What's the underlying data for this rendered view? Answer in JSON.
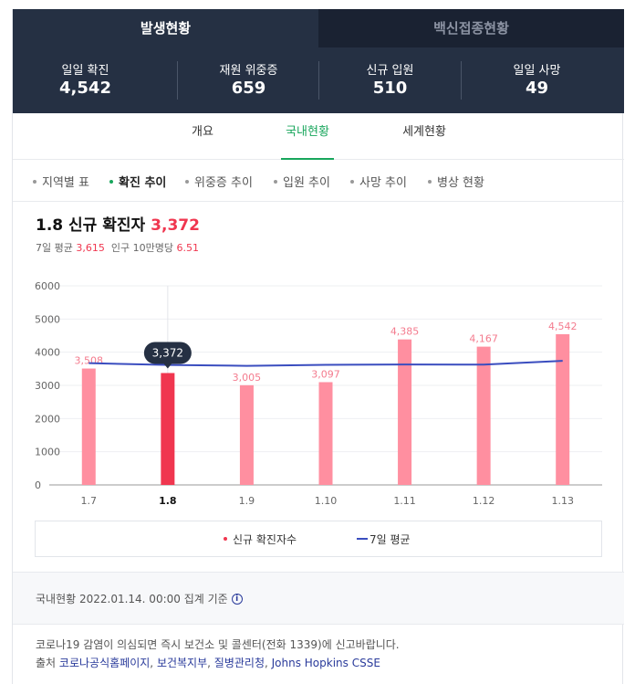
{
  "main_tabs": [
    {
      "label": "발생현황",
      "active": true
    },
    {
      "label": "백신접종현황",
      "active": false
    }
  ],
  "stats": [
    {
      "label": "일일 확진",
      "value": "4,542"
    },
    {
      "label": "재원 위중증",
      "value": "659"
    },
    {
      "label": "신규 입원",
      "value": "510"
    },
    {
      "label": "일일 사망",
      "value": "49"
    }
  ],
  "sub_tabs": [
    {
      "label": "개요",
      "active": false
    },
    {
      "label": "국내현황",
      "active": true
    },
    {
      "label": "세계현황",
      "active": false
    }
  ],
  "filters": [
    {
      "label": "지역별 표",
      "active": false
    },
    {
      "label": "확진 추이",
      "active": true
    },
    {
      "label": "위중증 추이",
      "active": false
    },
    {
      "label": "입원 추이",
      "active": false
    },
    {
      "label": "사망 추이",
      "active": false
    },
    {
      "label": "병상 현황",
      "active": false
    }
  ],
  "chart_header": {
    "title": "1.8 신규 확진자",
    "value": "3,372",
    "avg_label": "7일 평균",
    "avg_value": "3,615",
    "per_label": "인구 10만명당",
    "per_value": "6.51"
  },
  "legend": {
    "bar_label": "신규 확진자수",
    "line_label": "7일 평균"
  },
  "footer": {
    "basis": "국내현황 2022.01.14. 00:00 집계 기준",
    "info_icon": "i",
    "notice": "코로나19 감염이 의심되면 즉시 보건소 및 콜센터(전화 1339)에 신고바랍니다.",
    "source_label": "출처",
    "sources": [
      "코로나공식홈페이지",
      "보건복지부",
      "질병관리청",
      "Johns Hopkins CSSE"
    ]
  },
  "colors": {
    "bar": "#ff8fa0",
    "bar_selected": "#f0364f",
    "line": "#3a4dbf",
    "accent": "#18a65c",
    "tooltip_bg": "#253043"
  },
  "chart_data": {
    "type": "bar",
    "categories": [
      "1.7",
      "1.8",
      "1.9",
      "1.10",
      "1.11",
      "1.12",
      "1.13"
    ],
    "series": [
      {
        "name": "신규 확진자수",
        "values": [
          3508,
          3372,
          3005,
          3097,
          4385,
          4167,
          4542
        ]
      },
      {
        "name": "7일 평균",
        "values": [
          3670,
          3615,
          3590,
          3620,
          3630,
          3625,
          3740
        ]
      }
    ],
    "data_labels": [
      "3,508",
      "3,372",
      "3,005",
      "3,097",
      "4,385",
      "4,167",
      "4,542"
    ],
    "selected_index": 1,
    "yticks": [
      0,
      1000,
      2000,
      3000,
      4000,
      5000,
      6000
    ],
    "ylim": [
      0,
      6000
    ],
    "grid": true,
    "legend_position": "bottom"
  }
}
